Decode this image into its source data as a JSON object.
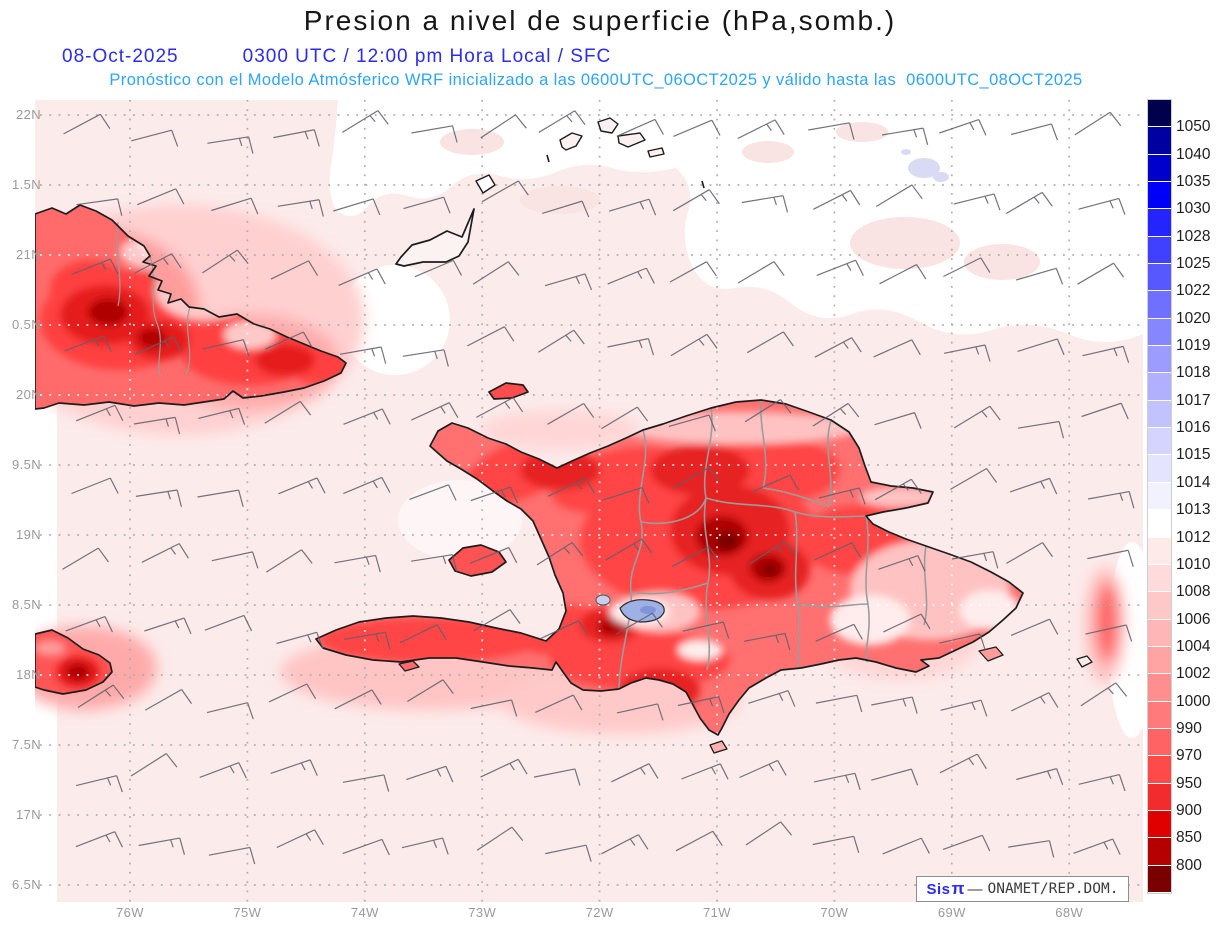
{
  "header": {
    "title": "Presion a nivel de superficie (hPa,somb.)",
    "title_color": "#161616",
    "date": "08-Oct-2025",
    "time": "0300 UTC / 12:00 pm Hora Local / SFC",
    "datetime_color": "#2b2bf2",
    "forecast": "Pronóstico con el Modelo Atmósferico WRF inicializado a las 0600UTC_06OCT2025 y válido hasta las  0600UTC_08OCT2025",
    "forecast_color": "#2da4ff"
  },
  "map": {
    "lat_labels": [
      "22N",
      "1.5N",
      "21N",
      "0.5N",
      "20N",
      "9.5N",
      "19N",
      "8.5N",
      "18N",
      "7.5N",
      "17N",
      "6.5N"
    ],
    "lon_labels": [
      "76W",
      "75W",
      "74W",
      "73W",
      "72W",
      "71W",
      "70W",
      "69W",
      "68W"
    ],
    "axis_color": "#9a9a9a",
    "sea_color": "#fcebeb",
    "grid_color": "#ababab",
    "land_grid_color": "#ffffff",
    "wind_barb_color": "#60606b",
    "coast_color": "#1c1c1c",
    "province_border_color": "#9c9c9c",
    "lake_color": "#9fb0e4"
  },
  "colorbar": {
    "labels": [
      "1050",
      "1040",
      "1035",
      "1030",
      "1028",
      "1025",
      "1022",
      "1020",
      "1019",
      "1018",
      "1017",
      "1016",
      "1015",
      "1014",
      "1013",
      "1012",
      "1010",
      "1008",
      "1006",
      "1004",
      "1002",
      "1000",
      "990",
      "970",
      "950",
      "900",
      "850",
      "800"
    ],
    "cell_colors": [
      "#00004c",
      "#0000a0",
      "#0000cc",
      "#0000f8",
      "#2424ff",
      "#4040ff",
      "#5858ff",
      "#7070ff",
      "#8686ff",
      "#9c9cff",
      "#b0b0ff",
      "#c2c2ff",
      "#d4d4ff",
      "#e4e4ff",
      "#f2f2ff",
      "#ffffff",
      "#ffeaea",
      "#ffdbdb",
      "#ffc8c8",
      "#ffb6b6",
      "#ffa3a3",
      "#ff8f8f",
      "#ff7a7a",
      "#ff6363",
      "#ff4a4a",
      "#f22c2c",
      "#e00000",
      "#b50000",
      "#7a0000"
    ],
    "label_color": "#1e1e1e"
  },
  "branding": {
    "sis": "Sis",
    "pi": "π",
    "dash": "—",
    "org": "ONAMET/REP.DOM.",
    "sis_color": "#2b2bf2",
    "org_color": "#3b3b3b"
  }
}
